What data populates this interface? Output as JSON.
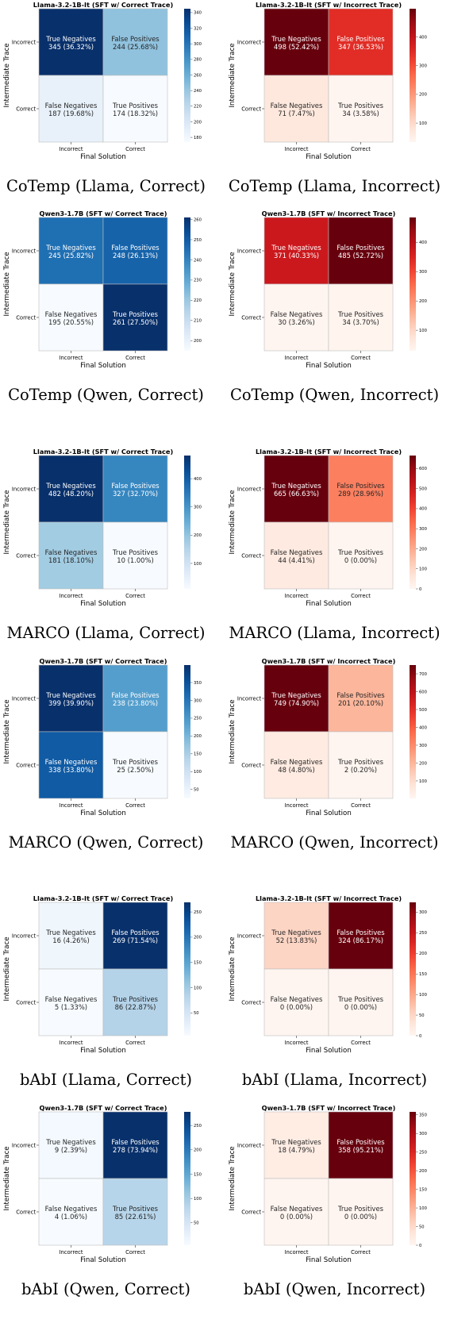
{
  "chart_data": [
    {
      "type": "heatmap",
      "title": "Llama-3.2-1B-It (SFT w/ Correct Trace)",
      "caption": "CoTemp (Llama, Correct)",
      "xlabel": "Final Solution",
      "ylabel": "Intermediate Trace",
      "x_categories": [
        "Incorrect",
        "Correct"
      ],
      "y_categories": [
        "Incorrect",
        "Correct"
      ],
      "cells": [
        [
          {
            "label": "True Negatives",
            "text": "345 (36.32%)",
            "value": 345
          },
          {
            "label": "False Positives",
            "text": "244 (25.68%)",
            "value": 244
          }
        ],
        [
          {
            "label": "False Negatives",
            "text": "187 (19.68%)",
            "value": 187
          },
          {
            "label": "True Positives",
            "text": "174 (18.32%)",
            "value": 174
          }
        ]
      ],
      "colormap": "Blues",
      "colorbar_range": [
        174,
        345
      ],
      "colorbar_ticks": [
        180,
        200,
        220,
        240,
        260,
        280,
        300,
        320,
        340
      ]
    },
    {
      "type": "heatmap",
      "title": "Llama-3.2-1B-It (SFT w/ Incorrect Trace)",
      "caption": "CoTemp (Llama, Incorrect)",
      "xlabel": "Final Solution",
      "ylabel": "Intermediate Trace",
      "x_categories": [
        "Incorrect",
        "Correct"
      ],
      "y_categories": [
        "Incorrect",
        "Correct"
      ],
      "cells": [
        [
          {
            "label": "True Negatives",
            "text": "498 (52.42%)",
            "value": 498
          },
          {
            "label": "False Positives",
            "text": "347 (36.53%)",
            "value": 347
          }
        ],
        [
          {
            "label": "False Negatives",
            "text": "71 (7.47%)",
            "value": 71
          },
          {
            "label": "True Positives",
            "text": "34 (3.58%)",
            "value": 34
          }
        ]
      ],
      "colormap": "Reds",
      "colorbar_range": [
        34,
        498
      ],
      "colorbar_ticks": [
        100,
        200,
        300,
        400
      ]
    },
    {
      "type": "heatmap",
      "title": "Qwen3-1.7B (SFT w/ Correct Trace)",
      "caption": "CoTemp (Qwen, Correct)",
      "xlabel": "Final Solution",
      "ylabel": "Intermediate Trace",
      "x_categories": [
        "Incorrect",
        "Correct"
      ],
      "y_categories": [
        "Incorrect",
        "Correct"
      ],
      "cells": [
        [
          {
            "label": "True Negatives",
            "text": "245 (25.82%)",
            "value": 245
          },
          {
            "label": "False Positives",
            "text": "248 (26.13%)",
            "value": 248
          }
        ],
        [
          {
            "label": "False Negatives",
            "text": "195 (20.55%)",
            "value": 195
          },
          {
            "label": "True Positives",
            "text": "261 (27.50%)",
            "value": 261
          }
        ]
      ],
      "colormap": "Blues",
      "colorbar_range": [
        195,
        261
      ],
      "colorbar_ticks": [
        200,
        210,
        220,
        230,
        240,
        250,
        260
      ]
    },
    {
      "type": "heatmap",
      "title": "Qwen3-1.7B (SFT w/ Incorrect Trace)",
      "caption": "CoTemp (Qwen, Incorrect)",
      "xlabel": "Final Solution",
      "ylabel": "Intermediate Trace",
      "x_categories": [
        "Incorrect",
        "Correct"
      ],
      "y_categories": [
        "Incorrect",
        "Correct"
      ],
      "cells": [
        [
          {
            "label": "True Negatives",
            "text": "371 (40.33%)",
            "value": 371
          },
          {
            "label": "False Positives",
            "text": "485 (52.72%)",
            "value": 485
          }
        ],
        [
          {
            "label": "False Negatives",
            "text": "30 (3.26%)",
            "value": 30
          },
          {
            "label": "True Positives",
            "text": "34 (3.70%)",
            "value": 34
          }
        ]
      ],
      "colormap": "Reds",
      "colorbar_range": [
        30,
        485
      ],
      "colorbar_ticks": [
        100,
        200,
        300,
        400
      ]
    },
    {
      "type": "heatmap",
      "title": "Llama-3.2-1B-It (SFT w/ Correct Trace)",
      "caption": "MARCO (Llama, Correct)",
      "xlabel": "Final Solution",
      "ylabel": "Intermediate Trace",
      "x_categories": [
        "Incorrect",
        "Correct"
      ],
      "y_categories": [
        "Incorrect",
        "Correct"
      ],
      "cells": [
        [
          {
            "label": "True Negatives",
            "text": "482 (48.20%)",
            "value": 482
          },
          {
            "label": "False Positives",
            "text": "327 (32.70%)",
            "value": 327
          }
        ],
        [
          {
            "label": "False Negatives",
            "text": "181 (18.10%)",
            "value": 181
          },
          {
            "label": "True Positives",
            "text": "10 (1.00%)",
            "value": 10
          }
        ]
      ],
      "colormap": "Blues",
      "colorbar_range": [
        10,
        482
      ],
      "colorbar_ticks": [
        100,
        200,
        300,
        400
      ]
    },
    {
      "type": "heatmap",
      "title": "Llama-3.2-1B-It (SFT w/ Incorrect Trace)",
      "caption": "MARCO (Llama, Incorrect)",
      "xlabel": "Final Solution",
      "ylabel": "Intermediate Trace",
      "x_categories": [
        "Incorrect",
        "Correct"
      ],
      "y_categories": [
        "Incorrect",
        "Correct"
      ],
      "cells": [
        [
          {
            "label": "True Negatives",
            "text": "665 (66.63%)",
            "value": 665
          },
          {
            "label": "False Positives",
            "text": "289 (28.96%)",
            "value": 289
          }
        ],
        [
          {
            "label": "False Negatives",
            "text": "44 (4.41%)",
            "value": 44
          },
          {
            "label": "True Positives",
            "text": "0 (0.00%)",
            "value": 0
          }
        ]
      ],
      "colormap": "Reds",
      "colorbar_range": [
        0,
        665
      ],
      "colorbar_ticks": [
        0,
        100,
        200,
        300,
        400,
        500,
        600
      ]
    },
    {
      "type": "heatmap",
      "title": "Qwen3-1.7B (SFT w/ Correct Trace)",
      "caption": "MARCO (Qwen, Correct)",
      "xlabel": "Final Solution",
      "ylabel": "Intermediate Trace",
      "x_categories": [
        "Incorrect",
        "Correct"
      ],
      "y_categories": [
        "Incorrect",
        "Correct"
      ],
      "cells": [
        [
          {
            "label": "True Negatives",
            "text": "399 (39.90%)",
            "value": 399
          },
          {
            "label": "False Positives",
            "text": "238 (23.80%)",
            "value": 238
          }
        ],
        [
          {
            "label": "False Negatives",
            "text": "338 (33.80%)",
            "value": 338
          },
          {
            "label": "True Positives",
            "text": "25 (2.50%)",
            "value": 25
          }
        ]
      ],
      "colormap": "Blues",
      "colorbar_range": [
        25,
        399
      ],
      "colorbar_ticks": [
        50,
        100,
        150,
        200,
        250,
        300,
        350
      ]
    },
    {
      "type": "heatmap",
      "title": "Qwen3-1.7B (SFT w/ Incorrect Trace)",
      "caption": "MARCO (Qwen, Incorrect)",
      "xlabel": "Final Solution",
      "ylabel": "Intermediate Trace",
      "x_categories": [
        "Incorrect",
        "Correct"
      ],
      "y_categories": [
        "Incorrect",
        "Correct"
      ],
      "cells": [
        [
          {
            "label": "True Negatives",
            "text": "749 (74.90%)",
            "value": 749
          },
          {
            "label": "False Positives",
            "text": "201 (20.10%)",
            "value": 201
          }
        ],
        [
          {
            "label": "False Negatives",
            "text": "48 (4.80%)",
            "value": 48
          },
          {
            "label": "True Positives",
            "text": "2 (0.20%)",
            "value": 2
          }
        ]
      ],
      "colormap": "Reds",
      "colorbar_range": [
        2,
        749
      ],
      "colorbar_ticks": [
        100,
        200,
        300,
        400,
        500,
        600,
        700
      ]
    },
    {
      "type": "heatmap",
      "title": "Llama-3.2-1B-It (SFT w/ Correct Trace)",
      "caption": "bAbI (Llama, Correct)",
      "xlabel": "Final Solution",
      "ylabel": "Intermediate Trace",
      "x_categories": [
        "Incorrect",
        "Correct"
      ],
      "y_categories": [
        "Incorrect",
        "Correct"
      ],
      "cells": [
        [
          {
            "label": "True Negatives",
            "text": "16 (4.26%)",
            "value": 16
          },
          {
            "label": "False Positives",
            "text": "269 (71.54%)",
            "value": 269
          }
        ],
        [
          {
            "label": "False Negatives",
            "text": "5 (1.33%)",
            "value": 5
          },
          {
            "label": "True Positives",
            "text": "86 (22.87%)",
            "value": 86
          }
        ]
      ],
      "colormap": "Blues",
      "colorbar_range": [
        5,
        269
      ],
      "colorbar_ticks": [
        50,
        100,
        150,
        200,
        250
      ]
    },
    {
      "type": "heatmap",
      "title": "Llama-3.2-1B-It (SFT w/ Incorrect Trace)",
      "caption": "bAbI (Llama, Incorrect)",
      "xlabel": "Final Solution",
      "ylabel": "Intermediate Trace",
      "x_categories": [
        "Incorrect",
        "Correct"
      ],
      "y_categories": [
        "Incorrect",
        "Correct"
      ],
      "cells": [
        [
          {
            "label": "True Negatives",
            "text": "52 (13.83%)",
            "value": 52
          },
          {
            "label": "False Positives",
            "text": "324 (86.17%)",
            "value": 324
          }
        ],
        [
          {
            "label": "False Negatives",
            "text": "0 (0.00%)",
            "value": 0
          },
          {
            "label": "True Positives",
            "text": "0 (0.00%)",
            "value": 0
          }
        ]
      ],
      "colormap": "Reds",
      "colorbar_range": [
        0,
        324
      ],
      "colorbar_ticks": [
        0,
        50,
        100,
        150,
        200,
        250,
        300
      ]
    },
    {
      "type": "heatmap",
      "title": "Qwen3-1.7B (SFT w/ Correct Trace)",
      "caption": "bAbI (Qwen, Correct)",
      "xlabel": "Final Solution",
      "ylabel": "Intermediate Trace",
      "x_categories": [
        "Incorrect",
        "Correct"
      ],
      "y_categories": [
        "Incorrect",
        "Correct"
      ],
      "cells": [
        [
          {
            "label": "True Negatives",
            "text": "9 (2.39%)",
            "value": 9
          },
          {
            "label": "False Positives",
            "text": "278 (73.94%)",
            "value": 278
          }
        ],
        [
          {
            "label": "False Negatives",
            "text": "4 (1.06%)",
            "value": 4
          },
          {
            "label": "True Positives",
            "text": "85 (22.61%)",
            "value": 85
          }
        ]
      ],
      "colormap": "Blues",
      "colorbar_range": [
        4,
        278
      ],
      "colorbar_ticks": [
        50,
        100,
        150,
        200,
        250
      ]
    },
    {
      "type": "heatmap",
      "title": "Qwen3-1.7B (SFT w/ Incorrect Trace)",
      "caption": "bAbI (Qwen, Incorrect)",
      "xlabel": "Final Solution",
      "ylabel": "Intermediate Trace",
      "x_categories": [
        "Incorrect",
        "Correct"
      ],
      "y_categories": [
        "Incorrect",
        "Correct"
      ],
      "cells": [
        [
          {
            "label": "True Negatives",
            "text": "18 (4.79%)",
            "value": 18
          },
          {
            "label": "False Positives",
            "text": "358 (95.21%)",
            "value": 358
          }
        ],
        [
          {
            "label": "False Negatives",
            "text": "0 (0.00%)",
            "value": 0
          },
          {
            "label": "True Positives",
            "text": "0 (0.00%)",
            "value": 0
          }
        ]
      ],
      "colormap": "Reds",
      "colorbar_range": [
        0,
        358
      ],
      "colorbar_ticks": [
        0,
        50,
        100,
        150,
        200,
        250,
        300,
        350
      ]
    }
  ]
}
